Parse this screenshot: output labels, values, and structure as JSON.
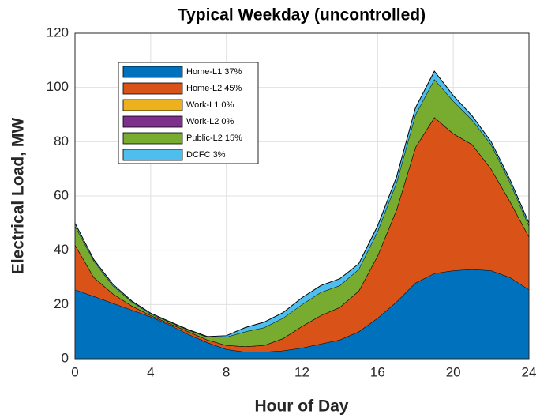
{
  "chart_data": {
    "type": "stacked_area",
    "title": "Typical Weekday (uncontrolled)",
    "x_label": "Hour of Day",
    "y_label": "Electrical Load, MW",
    "x": [
      0,
      1,
      2,
      3,
      4,
      5,
      6,
      7,
      8,
      9,
      10,
      11,
      12,
      13,
      14,
      15,
      16,
      17,
      18,
      19,
      20,
      21,
      22,
      23,
      24
    ],
    "series": [
      {
        "name": "Home-L1 37%",
        "color": "#0072bd",
        "values": [
          25.5,
          23,
          20.5,
          18,
          15.5,
          12.5,
          9,
          6,
          3.5,
          2.5,
          2.5,
          3,
          4,
          5.5,
          7,
          10,
          15,
          21,
          28,
          31.5,
          32.5,
          33,
          32.5,
          30,
          25.5
        ]
      },
      {
        "name": "Home-L2 45%",
        "color": "#d95319",
        "values": [
          16.5,
          7,
          3.5,
          1.5,
          0.5,
          0.5,
          1,
          1,
          1.5,
          2,
          2.5,
          4.5,
          8,
          10.5,
          12,
          15,
          23,
          34,
          50,
          57.5,
          50.5,
          46,
          37.5,
          28,
          19.5
        ]
      },
      {
        "name": "Work-L1 0%",
        "color": "#edb120",
        "values": [
          0,
          0,
          0,
          0,
          0,
          0,
          0,
          0,
          0,
          0,
          0,
          0,
          0,
          0,
          0,
          0,
          0,
          0,
          0,
          0,
          0,
          0,
          0,
          0,
          0
        ]
      },
      {
        "name": "Work-L2 0%",
        "color": "#7e2f8e",
        "values": [
          0,
          0,
          0,
          0,
          0,
          0,
          0,
          0,
          0,
          0,
          0,
          0,
          0,
          0,
          0,
          0,
          0,
          0,
          0,
          0,
          0,
          0,
          0,
          0,
          0
        ]
      },
      {
        "name": "Public-L2 15%",
        "color": "#77ac30",
        "values": [
          7,
          6,
          3,
          1.5,
          0.5,
          0.5,
          0.5,
          1,
          3,
          5.5,
          6.5,
          7.5,
          8,
          8.5,
          8,
          8,
          9,
          10,
          12,
          14,
          12,
          9,
          9,
          7,
          4
        ]
      },
      {
        "name": "DCFC 3%",
        "color": "#4dbeee",
        "values": [
          1,
          0.5,
          0.5,
          0.3,
          0.3,
          0.2,
          0.2,
          0.2,
          0.5,
          1.5,
          2,
          2,
          2.5,
          2.5,
          2.5,
          2,
          2,
          2,
          2.5,
          3,
          2,
          1.5,
          1,
          1,
          1
        ]
      }
    ],
    "xlim": [
      0,
      24
    ],
    "xticks": [
      0,
      4,
      8,
      12,
      16,
      20,
      24
    ],
    "ylim": [
      0,
      120
    ],
    "yticks": [
      0,
      20,
      40,
      60,
      80,
      100,
      120
    ],
    "grid": true,
    "legend": "upper left"
  }
}
